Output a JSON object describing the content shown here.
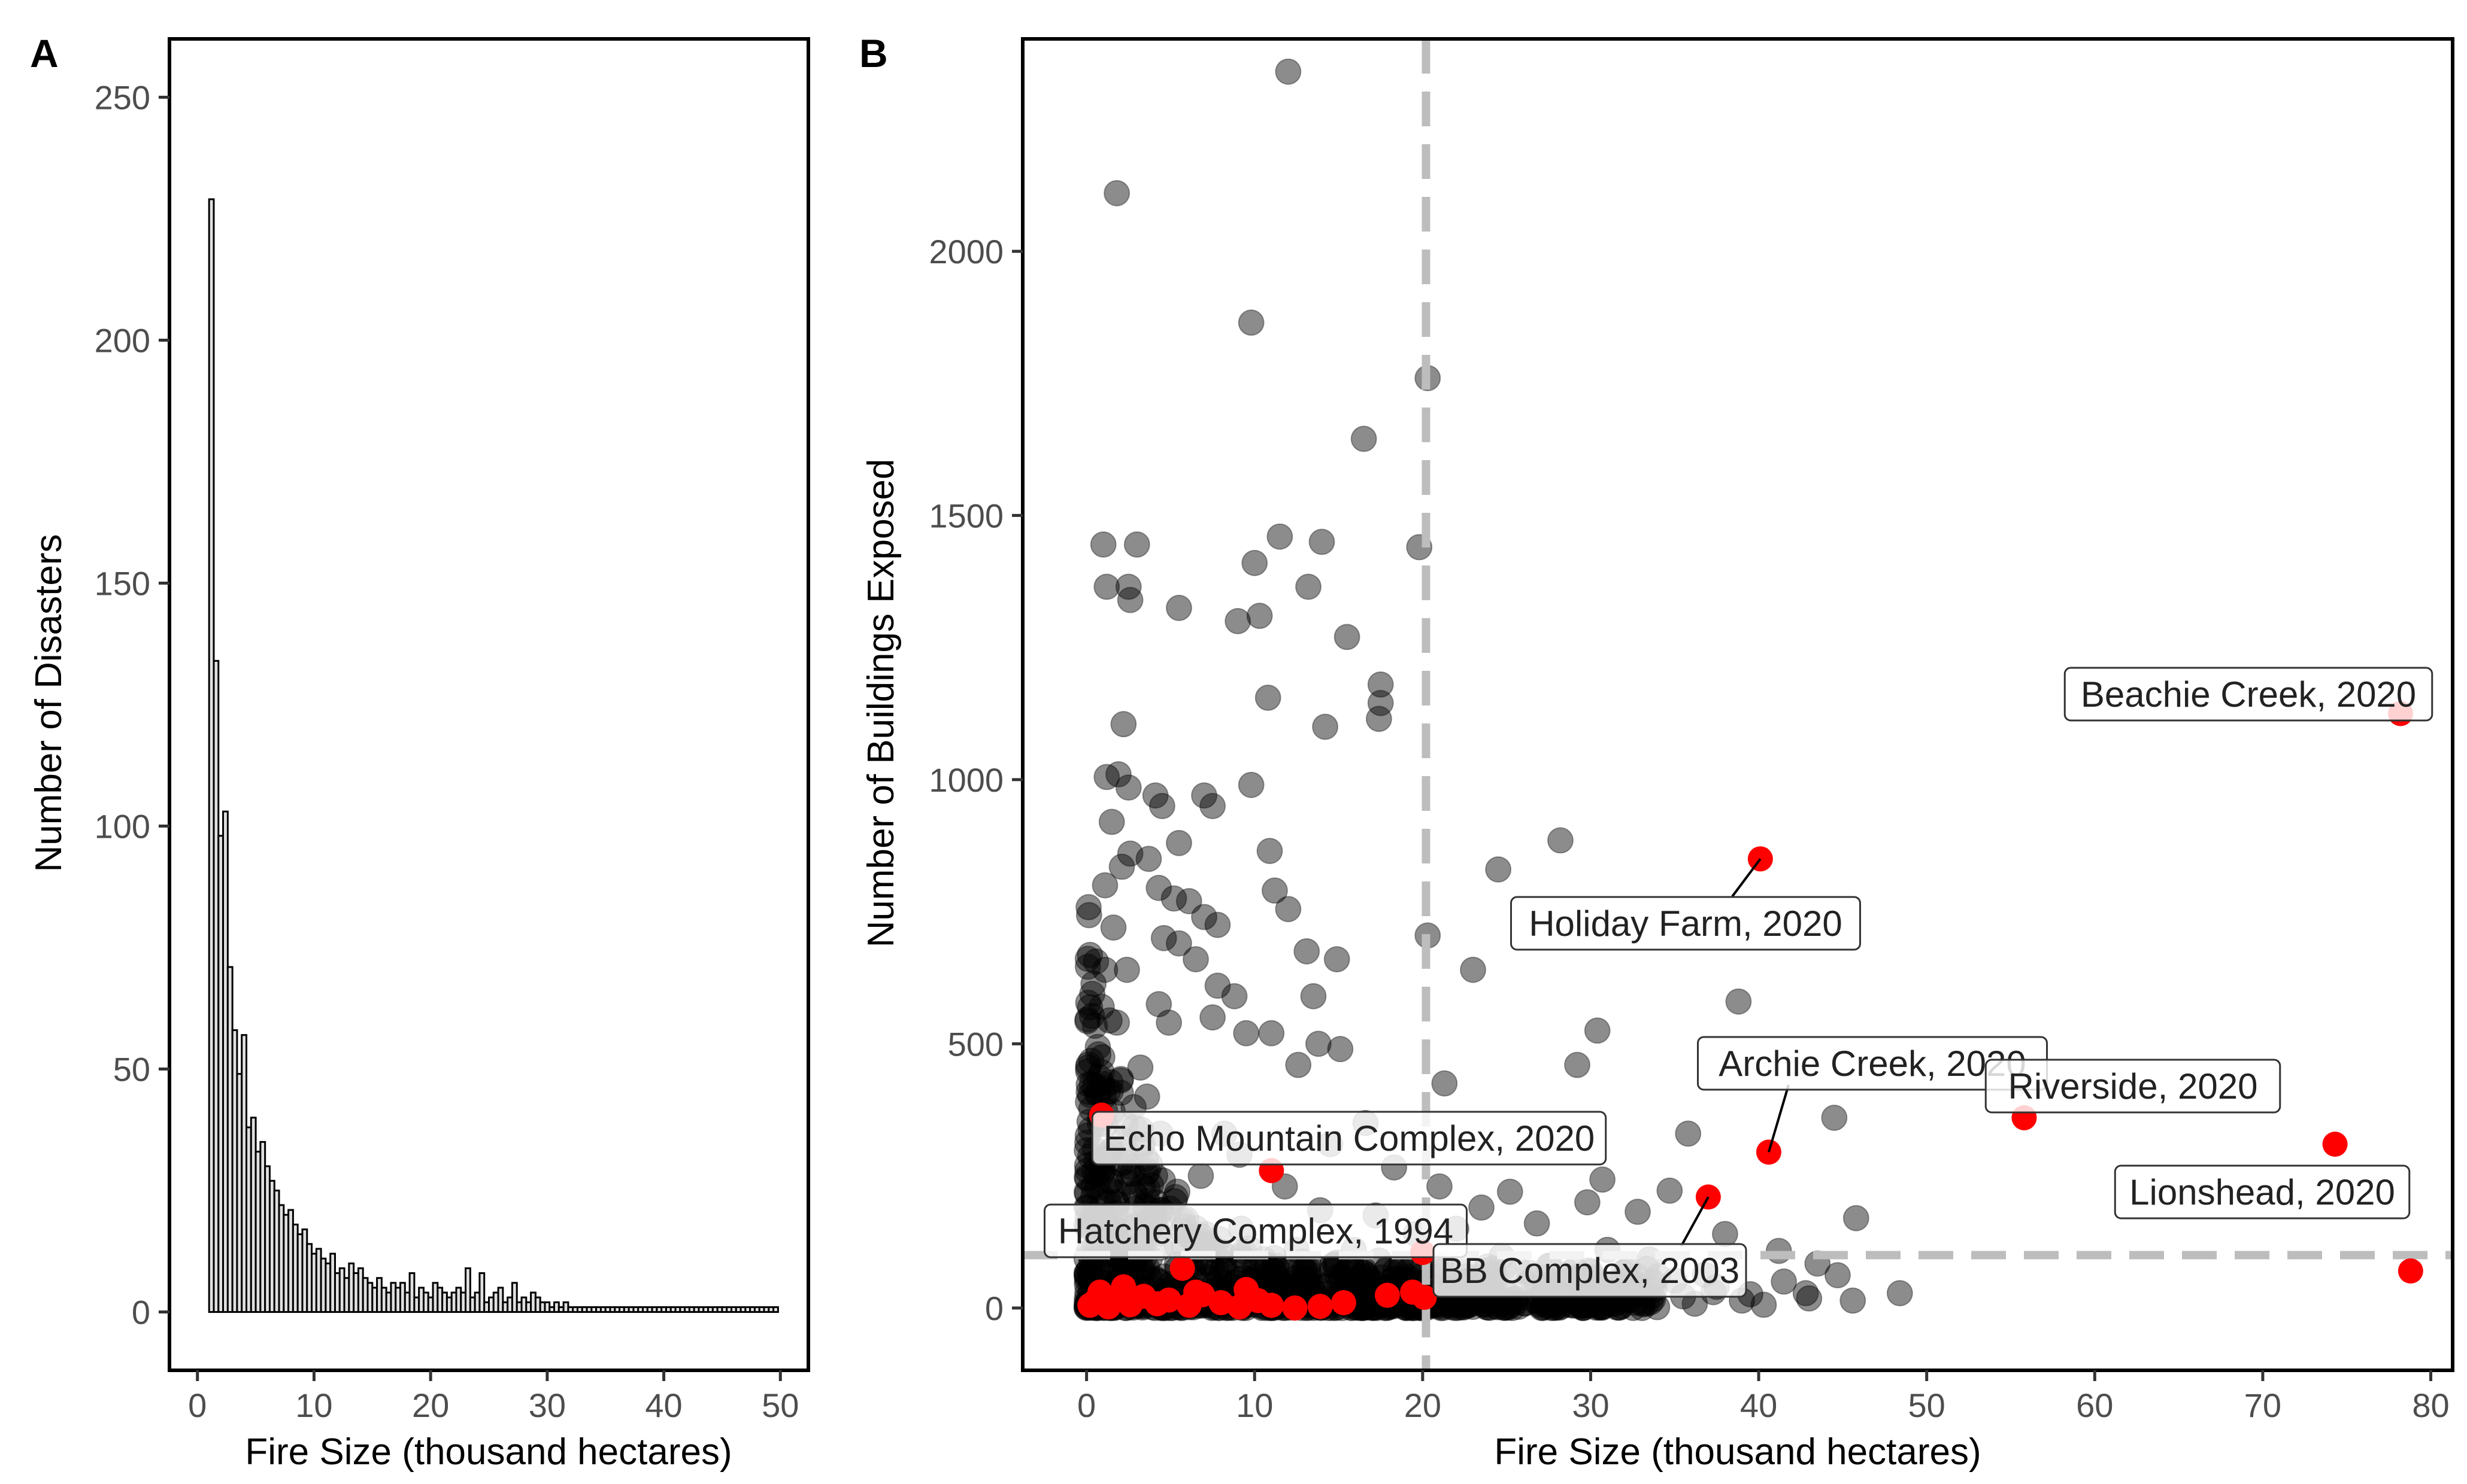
{
  "chart_data": [
    {
      "panel": "A",
      "type": "bar",
      "title": "",
      "xlabel": "Fire Size (thousand hectares)",
      "ylabel": "Number of Disasters",
      "xlim": [
        -2.4,
        52.4
      ],
      "ylim": [
        -12,
        262
      ],
      "xticks": [
        0,
        10,
        20,
        30,
        40,
        50
      ],
      "yticks": [
        0,
        50,
        100,
        150,
        200,
        250
      ],
      "bin_width": 0.4,
      "bin_start": 1.0,
      "values": [
        229,
        134,
        98,
        103,
        71,
        58,
        49,
        57,
        38,
        40,
        33,
        35,
        30,
        27,
        25,
        22,
        20,
        21,
        18,
        16,
        17,
        14,
        12,
        13,
        11,
        10,
        12,
        8,
        9,
        7,
        10,
        8,
        9,
        7,
        6,
        5,
        7,
        5,
        4,
        6,
        5,
        6,
        4,
        8,
        3,
        5,
        4,
        3,
        6,
        5,
        4,
        3,
        4,
        5,
        4,
        9,
        3,
        4,
        8,
        2,
        3,
        4,
        5,
        2,
        3,
        6,
        2,
        3,
        2,
        4,
        3,
        2,
        2,
        1,
        2,
        1,
        2,
        1,
        1,
        1,
        1,
        1,
        1,
        1,
        1,
        1,
        1,
        1,
        1,
        1,
        1,
        1,
        1,
        1,
        1,
        1,
        1,
        1,
        1,
        1,
        1,
        1,
        1,
        1,
        1,
        1,
        1,
        1,
        1,
        1,
        1,
        1,
        1,
        1,
        1,
        1,
        1,
        1,
        1,
        1,
        1,
        1
      ]
    },
    {
      "panel": "B",
      "type": "scatter",
      "title": "",
      "xlabel": "Fire Size (thousand hectares)",
      "ylabel": "Number of Buildings Exposed",
      "xlim": [
        -3.8,
        81.3
      ],
      "ylim": [
        -118,
        2402
      ],
      "xticks": [
        0,
        10,
        20,
        30,
        40,
        50,
        60,
        70,
        80
      ],
      "yticks": [
        0,
        500,
        1000,
        1500,
        2000
      ],
      "thresholds": {
        "x": 20.2,
        "y": 100
      },
      "series": [
        {
          "name": "fires",
          "color": "#000000",
          "points": [
            [
              12,
              2340
            ],
            [
              1.8,
              2110
            ],
            [
              9.8,
              1865
            ],
            [
              20.3,
              1760
            ],
            [
              16.5,
              1645
            ],
            [
              1,
              1445
            ],
            [
              3,
              1445
            ],
            [
              11.5,
              1460
            ],
            [
              14,
              1450
            ],
            [
              19.8,
              1440
            ],
            [
              10,
              1410
            ],
            [
              1.2,
              1365
            ],
            [
              2.5,
              1365
            ],
            [
              2.6,
              1340
            ],
            [
              13.2,
              1365
            ],
            [
              5.5,
              1325
            ],
            [
              9,
              1300
            ],
            [
              10.3,
              1310
            ],
            [
              15.5,
              1270
            ],
            [
              17.5,
              1180
            ],
            [
              17.5,
              1145
            ],
            [
              17.4,
              1115
            ],
            [
              10.8,
              1155
            ],
            [
              14.2,
              1100
            ],
            [
              2.2,
              1105
            ],
            [
              1.2,
              1005
            ],
            [
              1.9,
              1010
            ],
            [
              2.5,
              985
            ],
            [
              4.1,
              970
            ],
            [
              4.5,
              950
            ],
            [
              7,
              970
            ],
            [
              7.5,
              950
            ],
            [
              9.8,
              990
            ],
            [
              1.5,
              920
            ],
            [
              2.6,
              860
            ],
            [
              2.1,
              835
            ],
            [
              3.7,
              850
            ],
            [
              5.5,
              880
            ],
            [
              10.9,
              865
            ],
            [
              11.2,
              790
            ],
            [
              24.5,
              830
            ],
            [
              28.2,
              885
            ],
            [
              1.1,
              800
            ],
            [
              4.3,
              795
            ],
            [
              5.2,
              775
            ],
            [
              6.1,
              770
            ],
            [
              7,
              740
            ],
            [
              7.8,
              725
            ],
            [
              12,
              755
            ],
            [
              20.3,
              705
            ],
            [
              23,
              640
            ],
            [
              13.1,
              675
            ],
            [
              4.6,
              700
            ],
            [
              5.5,
              690
            ],
            [
              6.5,
              660
            ],
            [
              7.8,
              610
            ],
            [
              8.8,
              590
            ],
            [
              13.5,
              590
            ],
            [
              14.9,
              660
            ],
            [
              38.8,
              580
            ],
            [
              30.4,
              525
            ],
            [
              4.3,
              575
            ],
            [
              4.9,
              540
            ],
            [
              7.5,
              550
            ],
            [
              9.5,
              520
            ],
            [
              11,
              520
            ],
            [
              13.8,
              500
            ],
            [
              15.1,
              490
            ],
            [
              29.2,
              460
            ],
            [
              12.6,
              460
            ],
            [
              21.3,
              425
            ],
            [
              44.5,
              360
            ],
            [
              35.8,
              330
            ],
            [
              30.7,
              243
            ],
            [
              34.7,
              222
            ],
            [
              25.2,
              220
            ],
            [
              29.8,
              200
            ],
            [
              32.8,
              182
            ],
            [
              45.8,
              170
            ],
            [
              38,
              140
            ],
            [
              24.7,
              98
            ],
            [
              29.5,
              48
            ],
            [
              43.5,
              84
            ],
            [
              44.7,
              62
            ],
            [
              48.4,
              28
            ],
            [
              39.5,
              26
            ],
            [
              36.8,
              63
            ],
            [
              33.5,
              92
            ],
            [
              41.2,
              108
            ],
            [
              35,
              52
            ],
            [
              27.5,
              80
            ],
            [
              26.2,
              45
            ],
            [
              31.5,
              30
            ],
            [
              22,
              150
            ],
            [
              18.3,
              266
            ],
            [
              21,
              230
            ],
            [
              17.2,
              175
            ],
            [
              14.5,
              310
            ],
            [
              16.6,
              350
            ],
            [
              8.2,
              330
            ],
            [
              9.1,
              290
            ],
            [
              6.8,
              250
            ],
            [
              3.2,
              455
            ],
            [
              3.6,
              400
            ],
            [
              2.4,
              640
            ],
            [
              1.6,
              720
            ],
            [
              1.1,
              640
            ],
            [
              0.9,
              570
            ],
            [
              1.8,
              540
            ],
            [
              0.7,
              480
            ],
            [
              0.5,
              420
            ],
            [
              2.8,
              380
            ],
            [
              1.5,
              300
            ],
            [
              4.4,
              330
            ],
            [
              11.8,
              230
            ],
            [
              13.9,
              185
            ],
            [
              5.4,
              220
            ],
            [
              9.2,
              150
            ],
            [
              12.5,
              110
            ],
            [
              15.8,
              80
            ],
            [
              19,
              60
            ],
            [
              6.5,
              120
            ],
            [
              23.5,
              190
            ],
            [
              26.8,
              160
            ],
            [
              31,
              110
            ],
            [
              34,
              60
            ],
            [
              37.5,
              40
            ],
            [
              42.8,
              28
            ],
            [
              45.6,
              14
            ],
            [
              40.3,
              6
            ],
            [
              36.2,
              8
            ],
            [
              28.3,
              12
            ],
            [
              25.1,
              25
            ],
            [
              21.7,
              40
            ],
            [
              18.8,
              18
            ],
            [
              16.4,
              32
            ],
            [
              13.2,
              14
            ],
            [
              10.4,
              24
            ],
            [
              7.9,
              12
            ],
            [
              5.2,
              20
            ],
            [
              3.1,
              8
            ],
            [
              1.2,
              14
            ],
            [
              0.6,
              40
            ],
            [
              0.3,
              90
            ],
            [
              0.2,
              160
            ],
            [
              0.4,
              230
            ],
            [
              0.5,
              300
            ],
            [
              0.8,
              360
            ],
            [
              1.0,
              260
            ],
            [
              1.3,
              200
            ],
            [
              1.7,
              150
            ],
            [
              2.1,
              120
            ],
            [
              2.6,
              90
            ],
            [
              3.3,
              70
            ],
            [
              4.1,
              55
            ],
            [
              5.0,
              45
            ],
            [
              6.1,
              38
            ],
            [
              7.4,
              30
            ],
            [
              8.8,
              22
            ],
            [
              10.1,
              60
            ],
            [
              11.6,
              45
            ],
            [
              13.0,
              70
            ],
            [
              14.4,
              40
            ],
            [
              15.9,
              110
            ],
            [
              17.4,
              90
            ],
            [
              19.6,
              140
            ],
            [
              21.1,
              80
            ],
            [
              22.6,
              60
            ],
            [
              24.1,
              40
            ],
            [
              25.8,
              70
            ],
            [
              27.2,
              30
            ],
            [
              28.7,
              20
            ],
            [
              30.3,
              40
            ],
            [
              32.1,
              15
            ],
            [
              33.8,
              35
            ],
            [
              35.5,
              22
            ],
            [
              37.3,
              30
            ],
            [
              39.0,
              14
            ],
            [
              41.5,
              50
            ],
            [
              43.0,
              18
            ]
          ]
        },
        {
          "name": "Oregon disasters",
          "color": "#ff0000",
          "points": [
            [
              78.2,
              1125
            ],
            [
              40.1,
              850
            ],
            [
              55.8,
              360
            ],
            [
              74.3,
              310
            ],
            [
              40.6,
              295
            ],
            [
              37,
              210
            ],
            [
              78.8,
              70
            ],
            [
              0.9,
              365
            ],
            [
              11,
              260
            ],
            [
              5.7,
              75
            ],
            [
              20,
              105
            ],
            [
              15.3,
              10
            ],
            [
              17.9,
              24
            ],
            [
              19.4,
              30
            ],
            [
              20.1,
              20
            ],
            [
              0.2,
              5
            ],
            [
              0.5,
              12
            ],
            [
              0.8,
              30
            ],
            [
              1.3,
              2
            ],
            [
              1.9,
              18
            ],
            [
              2.6,
              6
            ],
            [
              3.4,
              22
            ],
            [
              4.2,
              8
            ],
            [
              4.9,
              15
            ],
            [
              6.1,
              5
            ],
            [
              6.9,
              25
            ],
            [
              8,
              10
            ],
            [
              9.1,
              2
            ],
            [
              10.2,
              14
            ],
            [
              11,
              5
            ],
            [
              12.4,
              0
            ],
            [
              13.9,
              3
            ],
            [
              2.2,
              40
            ],
            [
              6.5,
              30
            ],
            [
              9.5,
              35
            ]
          ]
        }
      ],
      "annotations": [
        {
          "text": "Beachie Creek, 2020",
          "x": 78.2,
          "y": 1125
        },
        {
          "text": "Holiday Farm, 2020",
          "x": 40.1,
          "y": 850
        },
        {
          "text": "Archie Creek, 2020",
          "x": 40.6,
          "y": 295
        },
        {
          "text": "Riverside, 2020",
          "x": 55.8,
          "y": 360
        },
        {
          "text": "Lionshead, 2020",
          "x": 74.3,
          "y": 310
        },
        {
          "text": "Echo Mountain Complex, 2020",
          "x": 11,
          "y": 260
        },
        {
          "text": "Hatchery Complex, 1994",
          "x": 5.7,
          "y": 75
        },
        {
          "text": "BB Complex, 2003",
          "x": 37,
          "y": 210
        }
      ]
    }
  ],
  "panels": {
    "a": {
      "tag": "A"
    },
    "b": {
      "tag": "B"
    }
  }
}
